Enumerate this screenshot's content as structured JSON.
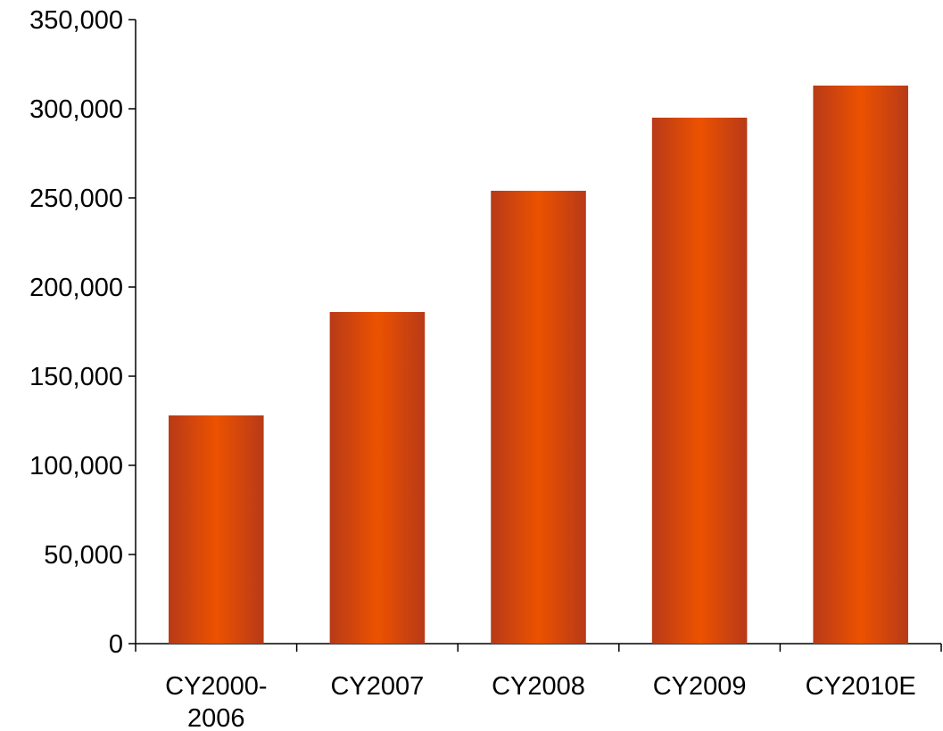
{
  "chart_data": {
    "type": "bar",
    "title": "",
    "xlabel": "",
    "ylabel": "",
    "categories": [
      [
        "CY2000-",
        "2006"
      ],
      [
        "CY2007"
      ],
      [
        "CY2008"
      ],
      [
        "CY2009"
      ],
      [
        "CY2010E"
      ]
    ],
    "values": [
      128000,
      186000,
      254000,
      295000,
      313000
    ],
    "ylim": [
      0,
      350000
    ],
    "yticks": [
      0,
      50000,
      100000,
      150000,
      200000,
      250000,
      300000,
      350000
    ],
    "ytick_labels": [
      "0",
      "50,000",
      "100,000",
      "150,000",
      "200,000",
      "250,000",
      "300,000",
      "350,000"
    ],
    "grid": false,
    "legend": "none",
    "bar_color_dark": "#b83a18",
    "bar_color_light": "#ec5200"
  }
}
